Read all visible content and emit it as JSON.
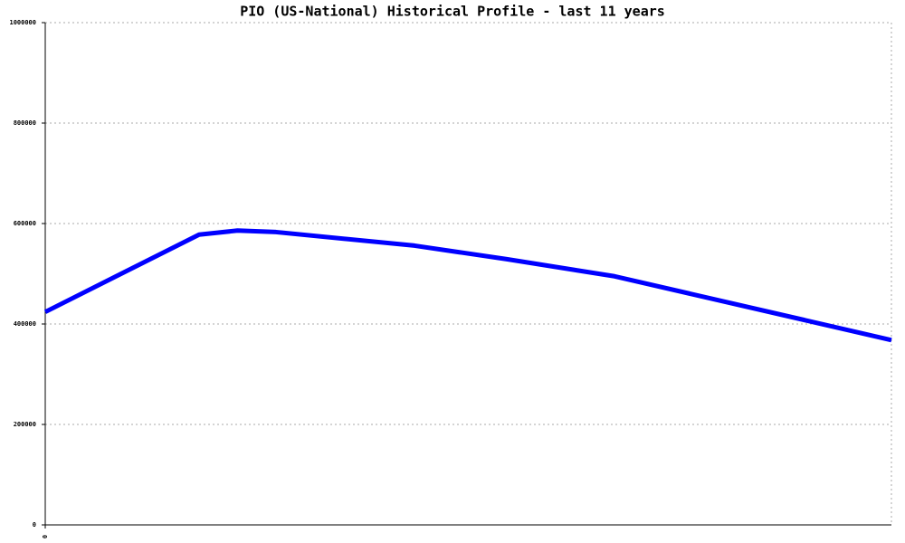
{
  "chart_data": {
    "type": "line",
    "title": "PIO (US-National) Historical Profile - last 11 years",
    "x": [
      0,
      2,
      2.5,
      3,
      4.8,
      6,
      7.4,
      11
    ],
    "values": [
      424000,
      578000,
      586000,
      583000,
      556000,
      529000,
      495000,
      368000
    ],
    "color": "#0000ff",
    "xlim": [
      0,
      11
    ],
    "xticks": [
      0
    ],
    "ylim": [
      0,
      1000000
    ],
    "yticks": [
      0,
      200000,
      400000,
      600000,
      800000,
      1000000
    ],
    "grid": true
  }
}
